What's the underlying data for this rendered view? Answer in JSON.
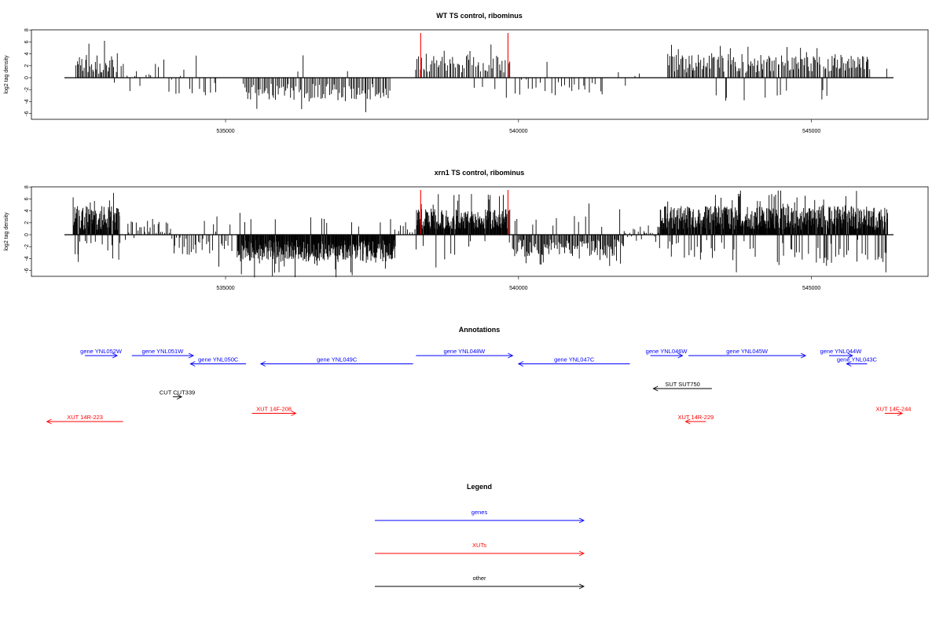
{
  "chart_data": [
    {
      "type": "bar",
      "title": "WT TS control, ribominus",
      "ylabel": "log2 tag density",
      "xlabel": "",
      "ylim": [
        -6,
        8
      ],
      "yticks": [
        "8",
        "6",
        "4",
        "2",
        "0",
        "-2",
        "-4",
        "-6"
      ],
      "xlim": [
        532250,
        546400
      ],
      "xticks": [
        {
          "value": 535000,
          "label": "535000"
        },
        {
          "value": 540000,
          "label": "540000"
        },
        {
          "value": 545000,
          "label": "545000"
        }
      ],
      "series": [
        {
          "color": "#000000",
          "segments": [
            {
              "from": 532450,
              "to": 533150,
              "step": 20,
              "mean": 2.2,
              "amp": 1.6,
              "neg_prob": 0.05
            },
            {
              "from": 533200,
              "to": 533900,
              "step": 60,
              "mean": 1.0,
              "amp": 1.0,
              "neg_prob": 0.1
            },
            {
              "from": 533950,
              "to": 534900,
              "step": 60,
              "mean": -1.5,
              "amp": 1.6,
              "neg_prob": 0.85
            },
            {
              "from": 535300,
              "to": 537800,
              "step": 25,
              "mean": -2.4,
              "amp": 1.4,
              "neg_prob": 0.95
            },
            {
              "from": 538250,
              "to": 539850,
              "step": 25,
              "mean": 2.3,
              "amp": 1.4,
              "neg_prob": 0.05
            },
            {
              "from": 539950,
              "to": 541450,
              "step": 60,
              "mean": -1.6,
              "amp": 1.4,
              "neg_prob": 0.9
            },
            {
              "from": 541700,
              "to": 542100,
              "step": 120,
              "mean": 0.6,
              "amp": 1.0,
              "neg_prob": 0.5
            },
            {
              "from": 542550,
              "to": 546000,
              "step": 20,
              "mean": 2.4,
              "amp": 1.6,
              "neg_prob": 0.06
            },
            {
              "from": 546300,
              "to": 546300,
              "step": 40,
              "mean": 1.6,
              "amp": 0.3,
              "neg_prob": 0
            }
          ]
        },
        {
          "color": "#ff0000",
          "bars": [
            {
              "x": 538330,
              "y": 7.5
            },
            {
              "x": 539820,
              "y": 7.5
            }
          ]
        }
      ]
    },
    {
      "type": "bar",
      "title": "xrn1 TS control, ribominus",
      "ylabel": "log2 tag density",
      "xlabel": "",
      "ylim": [
        -6,
        8
      ],
      "yticks": [
        "8",
        "6",
        "4",
        "2",
        "0",
        "-2",
        "-4",
        "-6"
      ],
      "xlim": [
        532250,
        546400
      ],
      "xticks": [
        {
          "value": 535000,
          "label": "535000"
        },
        {
          "value": 540000,
          "label": "540000"
        },
        {
          "value": 545000,
          "label": "545000"
        }
      ],
      "series": [
        {
          "color": "#000000",
          "segments": [
            {
              "from": 532400,
              "to": 533200,
              "step": 8,
              "mean": 2.8,
              "amp": 2.0,
              "neg_prob": 0.12
            },
            {
              "from": 533300,
              "to": 534050,
              "step": 30,
              "mean": 1.2,
              "amp": 1.2,
              "neg_prob": 0.15
            },
            {
              "from": 534050,
              "to": 535100,
              "step": 30,
              "mean": -1.8,
              "amp": 1.6,
              "neg_prob": 0.85
            },
            {
              "from": 535200,
              "to": 537900,
              "step": 8,
              "mean": -2.7,
              "amp": 1.8,
              "neg_prob": 0.95
            },
            {
              "from": 537900,
              "to": 538250,
              "step": 40,
              "mean": 1.0,
              "amp": 1.0,
              "neg_prob": 0.3
            },
            {
              "from": 538250,
              "to": 539850,
              "step": 8,
              "mean": 2.6,
              "amp": 1.7,
              "neg_prob": 0.05
            },
            {
              "from": 539900,
              "to": 541800,
              "step": 15,
              "mean": -2.2,
              "amp": 1.4,
              "neg_prob": 0.9
            },
            {
              "from": 541800,
              "to": 542400,
              "step": 30,
              "mean": 0.6,
              "amp": 1.0,
              "neg_prob": 0.4
            },
            {
              "from": 542400,
              "to": 546300,
              "step": 7,
              "mean": 2.8,
              "amp": 2.0,
              "neg_prob": 0.12
            }
          ]
        },
        {
          "color": "#ff0000",
          "bars": [
            {
              "x": 538330,
              "y": 7.5
            },
            {
              "x": 539820,
              "y": 7.5
            }
          ]
        }
      ]
    }
  ],
  "annotations": {
    "title": "Annotations",
    "xlim": [
      532250,
      546400
    ],
    "features": [
      {
        "label": "gene YNL052W",
        "start": 532600,
        "end": 533150,
        "strand": "+",
        "row": 0,
        "color": "#0000ff"
      },
      {
        "label": "gene YNL051W",
        "start": 533400,
        "end": 534450,
        "strand": "+",
        "row": 0,
        "color": "#0000ff"
      },
      {
        "label": "gene YNL050C",
        "start": 534400,
        "end": 535350,
        "strand": "-",
        "row": 1,
        "color": "#0000ff"
      },
      {
        "label": "gene YNL049C",
        "start": 535600,
        "end": 538200,
        "strand": "-",
        "row": 1,
        "color": "#0000ff"
      },
      {
        "label": "gene YNL048W",
        "start": 538250,
        "end": 539900,
        "strand": "+",
        "row": 0,
        "color": "#0000ff"
      },
      {
        "label": "gene YNL047C",
        "start": 540000,
        "end": 541900,
        "strand": "-",
        "row": 1,
        "color": "#0000ff"
      },
      {
        "label": "gene YNL046W",
        "start": 542250,
        "end": 542800,
        "strand": "+",
        "row": 0,
        "color": "#0000ff"
      },
      {
        "label": "gene YNL045W",
        "start": 542900,
        "end": 544900,
        "strand": "+",
        "row": 0,
        "color": "#0000ff"
      },
      {
        "label": "gene YNL044W",
        "start": 545300,
        "end": 545700,
        "strand": "+",
        "row": 0,
        "color": "#0000ff"
      },
      {
        "label": "gene YNL043C",
        "start": 545600,
        "end": 545950,
        "strand": "-",
        "row": 1,
        "color": "#0000ff"
      },
      {
        "label": "CUT CUT339",
        "start": 534100,
        "end": 534250,
        "strand": "+",
        "row": 5,
        "color": "#000000"
      },
      {
        "label": "SUT SUT750",
        "start": 542300,
        "end": 543300,
        "strand": "-",
        "row": 4,
        "color": "#000000"
      },
      {
        "label": "XUT 14R-223",
        "start": 531950,
        "end": 533250,
        "strand": "-",
        "row": 8,
        "color": "#ff0000"
      },
      {
        "label": "XUT 14F-208",
        "start": 535450,
        "end": 536200,
        "strand": "+",
        "row": 7,
        "color": "#ff0000"
      },
      {
        "label": "XUT 14R-229",
        "start": 542850,
        "end": 543200,
        "strand": "-",
        "row": 8,
        "color": "#ff0000"
      },
      {
        "label": "XUT 14F-244",
        "start": 546250,
        "end": 546550,
        "strand": "+",
        "row": 7,
        "color": "#ff0000"
      }
    ]
  },
  "legend": {
    "title": "Legend",
    "items": [
      {
        "label": "genes",
        "color": "#0000ff"
      },
      {
        "label": "XUTs",
        "color": "#ff0000"
      },
      {
        "label": "other",
        "color": "#000000"
      }
    ]
  }
}
